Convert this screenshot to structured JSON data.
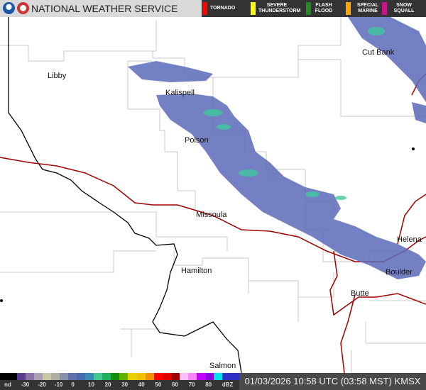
{
  "header": {
    "title": "NATIONAL WEATHER SERVICE",
    "logos": [
      "noaa-logo",
      "nws-logo"
    ]
  },
  "warnings": [
    {
      "label": "TORNADO",
      "color": "#ff0000"
    },
    {
      "label": "SEVERE THUNDERSTORM",
      "color": "#ffff00"
    },
    {
      "label": "FLASH FLOOD",
      "color": "#228b22"
    },
    {
      "label": "SPECIAL MARINE",
      "color": "#ffa500"
    },
    {
      "label": "SNOW SQUALL",
      "color": "#c71585"
    }
  ],
  "cities": [
    {
      "name": "Libby"
    },
    {
      "name": "Kalispell"
    },
    {
      "name": "Polson"
    },
    {
      "name": "Missoula"
    },
    {
      "name": "Hamilton"
    },
    {
      "name": "Cut Bank"
    },
    {
      "name": "Helena"
    },
    {
      "name": "Boulder"
    },
    {
      "name": "Butte"
    },
    {
      "name": "Salmon"
    }
  ],
  "legend": {
    "ticks": [
      "nd",
      "-30",
      "-20",
      "-10",
      "0",
      "10",
      "20",
      "30",
      "40",
      "50",
      "60",
      "70",
      "80",
      "dBZ"
    ],
    "colors": [
      "#000000",
      "#000000",
      "#5a3d8c",
      "#8a74a8",
      "#a8a0b8",
      "#c8c8a8",
      "#b0b0a0",
      "#8890a8",
      "#6070a8",
      "#4a6ab0",
      "#3a8ab8",
      "#40c890",
      "#20b060",
      "#109010",
      "#60b000",
      "#e8d000",
      "#f0c000",
      "#f09000",
      "#ff0000",
      "#e00000",
      "#a00000",
      "#ffc0ff",
      "#ff80ff",
      "#c000ff",
      "#9000e0",
      "#00e0e8",
      "#3030c8",
      "#3030c8"
    ]
  },
  "timestamp": "01/03/2026 10:58 UTC (03:58 MST) KMSX"
}
